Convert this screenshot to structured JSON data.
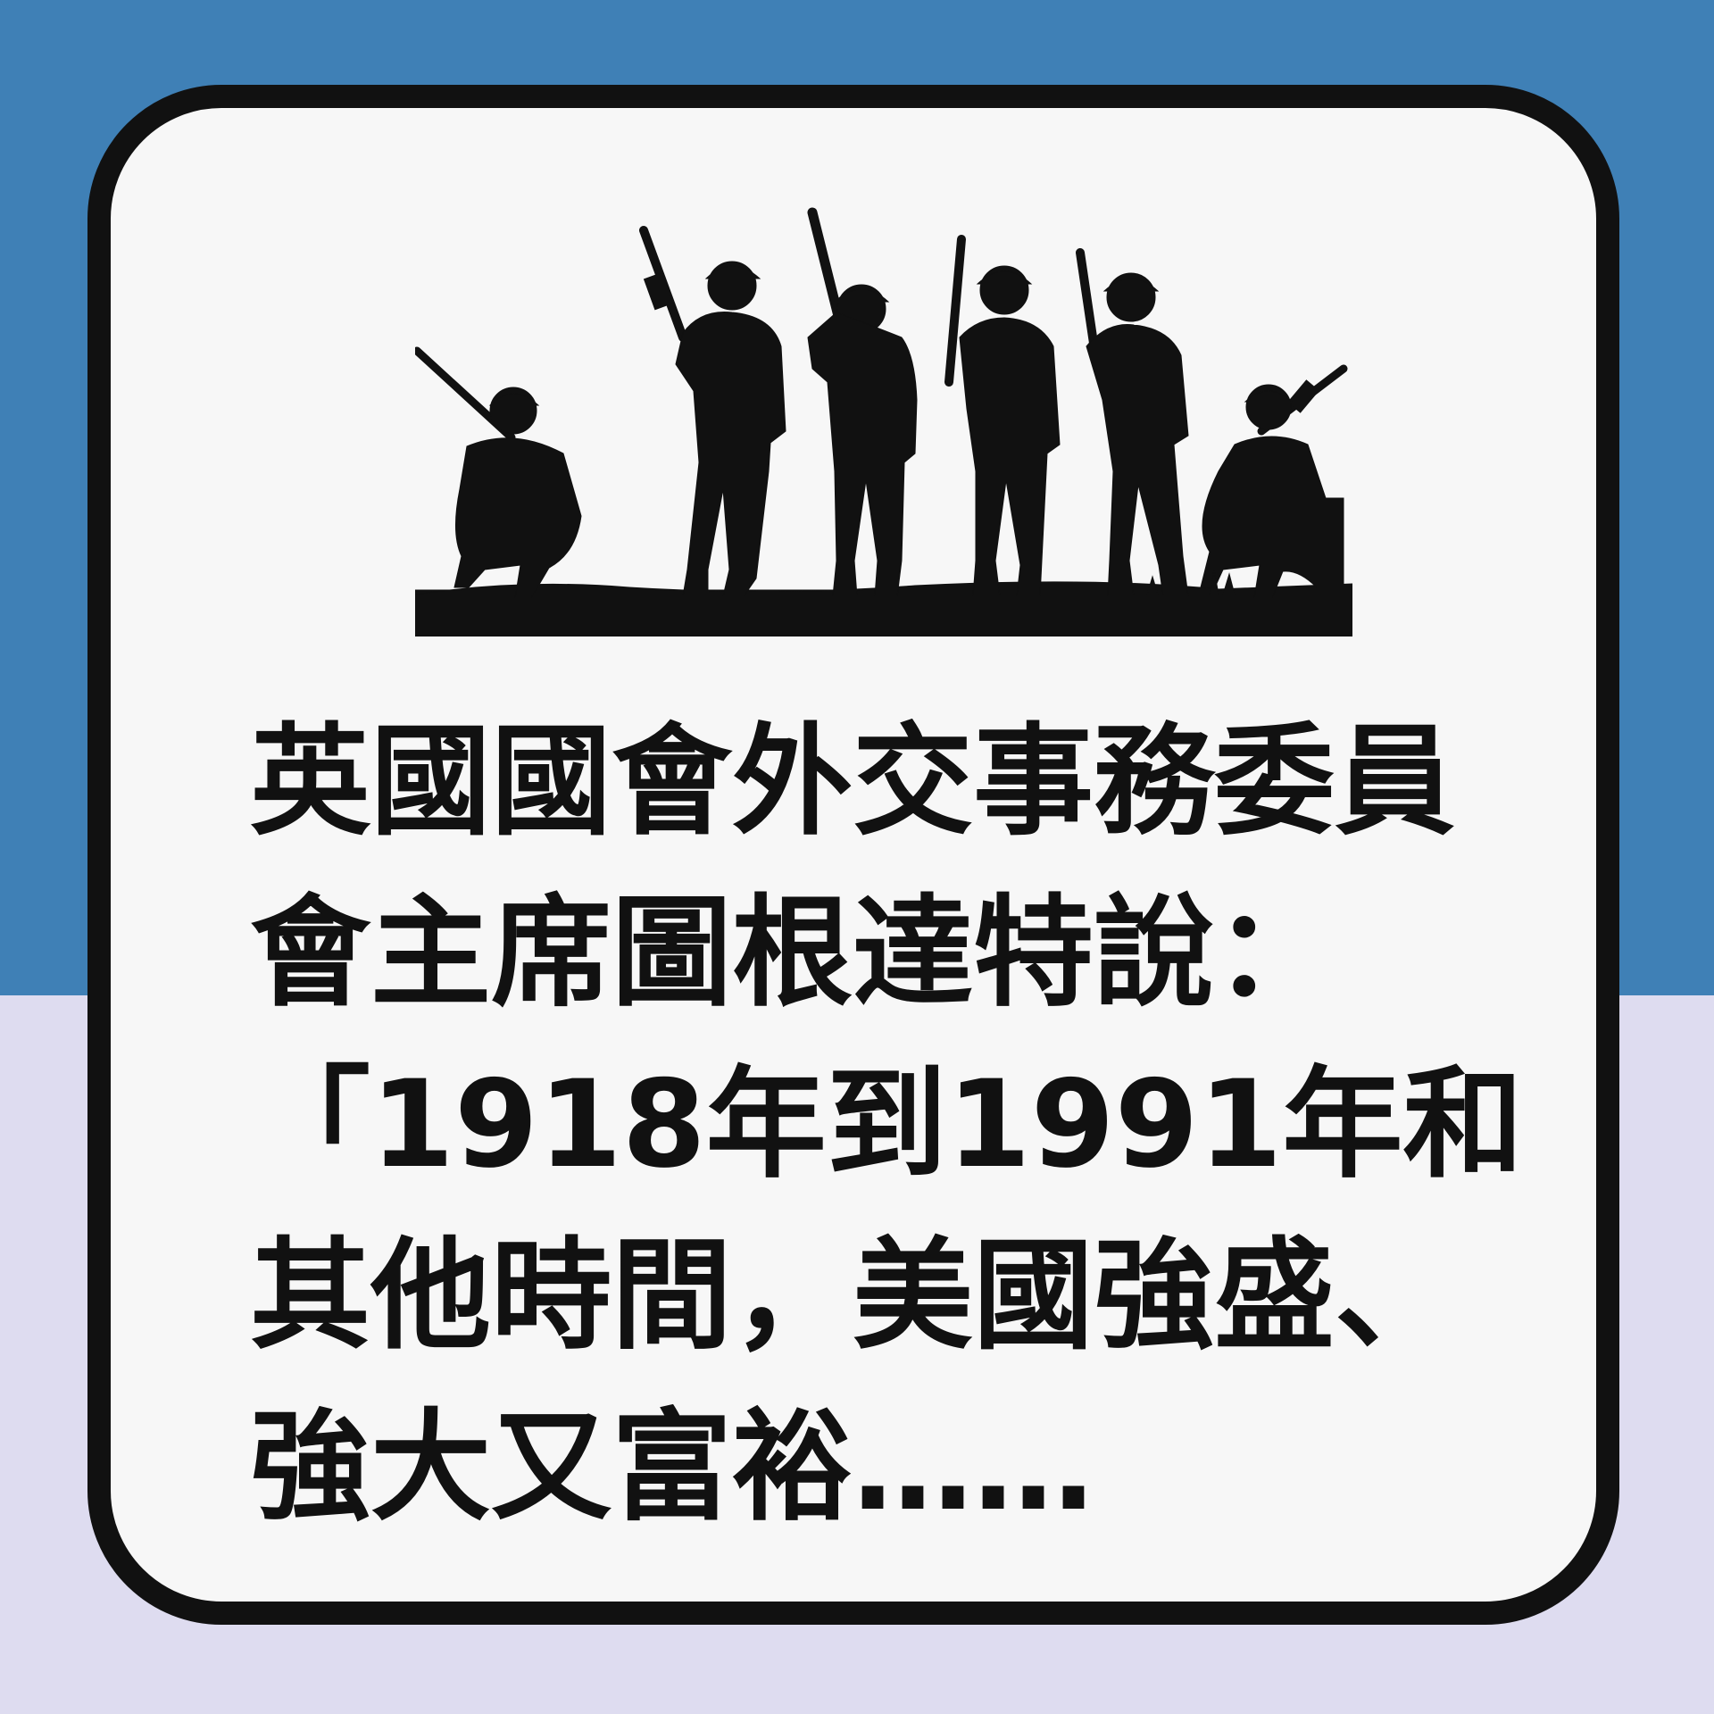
{
  "colors": {
    "top_band": "#3f80b6",
    "bottom_band": "#dedcf0",
    "card_fill": "#f7f7f7",
    "card_border": "#111111",
    "silhouette": "#111111",
    "text": "#111111"
  },
  "illustration": {
    "icon": "soldiers-silhouette-icon"
  },
  "quote": {
    "lines": [
      "英國國會外交事務委員",
      "會主席圖根達特說：",
      "「1918年到1991年和",
      "其他時間，美國強盛、",
      "強大又富裕……"
    ]
  }
}
